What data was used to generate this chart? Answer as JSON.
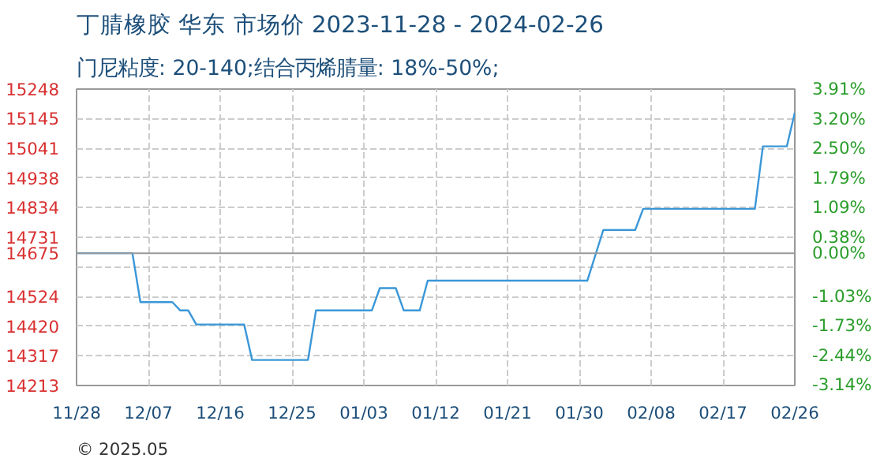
{
  "chart_data": {
    "type": "line",
    "title": "丁腈橡胶 华东 市场价 2023-11-28 - 2024-02-26",
    "subtitle": "门尼粘度: 20-140;结合丙烯腈量: 18%-50%;",
    "annotations": [
      "© 2025.05"
    ],
    "x": [
      "2023-11-28",
      "2023-12-05",
      "2023-12-06",
      "2023-12-10",
      "2023-12-11",
      "2023-12-12",
      "2023-12-13",
      "2023-12-19",
      "2023-12-20",
      "2023-12-27",
      "2023-12-28",
      "2024-01-04",
      "2024-01-05",
      "2024-01-07",
      "2024-01-08",
      "2024-01-10",
      "2024-01-11",
      "2024-01-31",
      "2024-02-02",
      "2024-02-06",
      "2024-02-07",
      "2024-02-21",
      "2024-02-22",
      "2024-02-25",
      "2024-02-26"
    ],
    "series": [
      {
        "color": "#3a97d8",
        "values": [
          14675,
          14675,
          14504,
          14504,
          14475,
          14475,
          14426,
          14426,
          14302,
          14302,
          14475,
          14475,
          14553,
          14553,
          14475,
          14475,
          14579,
          14579,
          14756,
          14756,
          14830,
          14830,
          15048,
          15048,
          15166
        ]
      }
    ],
    "xlim": [
      "2023-11-28",
      "2024-02-26"
    ],
    "xticks": [
      {
        "value": "2023-11-28",
        "label": "11/28"
      },
      {
        "value": "2023-12-07",
        "label": "12/07"
      },
      {
        "value": "2023-12-16",
        "label": "12/16"
      },
      {
        "value": "2023-12-25",
        "label": "12/25"
      },
      {
        "value": "2024-01-03",
        "label": "01/03"
      },
      {
        "value": "2024-01-12",
        "label": "01/12"
      },
      {
        "value": "2024-01-21",
        "label": "01/21"
      },
      {
        "value": "2024-01-30",
        "label": "01/30"
      },
      {
        "value": "2024-02-08",
        "label": "02/08"
      },
      {
        "value": "2024-02-17",
        "label": "02/17"
      },
      {
        "value": "2024-02-26",
        "label": "02/26"
      }
    ],
    "ylim": [
      14213,
      15248
    ],
    "yticks": [
      14213,
      14317,
      14420,
      14524,
      {
        "value": 14627,
        "label": null
      },
      14675,
      14731,
      14834,
      14938,
      15041,
      15145,
      15248
    ],
    "y2lim": [
      -3.15,
      3.91
    ],
    "y2ticks": [
      {
        "value": -3.14,
        "label": "-3.14%"
      },
      {
        "value": -2.44,
        "label": "-2.44%"
      },
      {
        "value": -1.73,
        "label": "-1.73%"
      },
      {
        "value": -1.03,
        "label": "-1.03%"
      },
      {
        "value": 0,
        "label": "0.00%"
      },
      {
        "value": 0.38,
        "label": "0.38%"
      },
      {
        "value": 1.09,
        "label": "1.09%"
      },
      {
        "value": 1.79,
        "label": "1.79%"
      },
      {
        "value": 2.5,
        "label": "2.50%"
      },
      {
        "value": 3.2,
        "label": "3.20%"
      },
      {
        "value": 3.91,
        "label": "3.91%"
      }
    ],
    "ref_lines": [
      {
        "axis": "y",
        "value": 14675,
        "color": "#999999",
        "line_style": "solid"
      }
    ],
    "grid": true,
    "marker": "none",
    "line_style": "solid"
  }
}
